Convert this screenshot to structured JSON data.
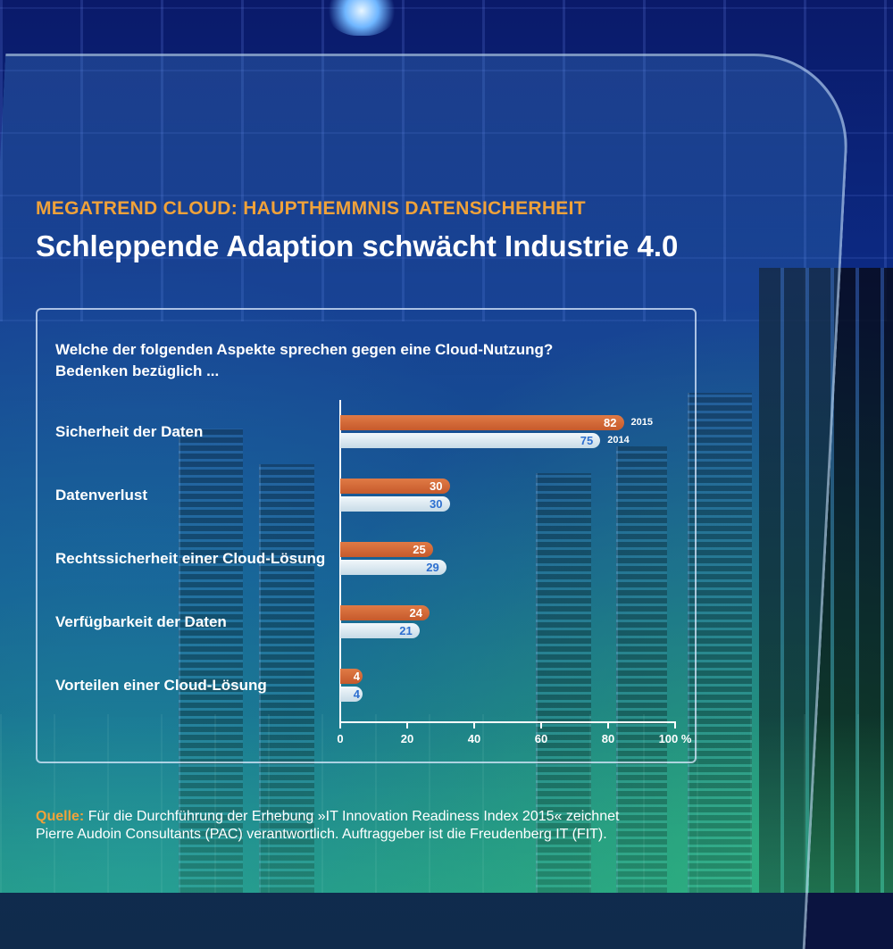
{
  "header": {
    "kicker": "MEGATREND CLOUD: HAUPTHEMMNIS DATENSICHERHEIT",
    "title": "Schleppende Adaption schwächt Industrie 4.0"
  },
  "question": {
    "line1": "Welche der folgenden Aspekte sprechen gegen eine Cloud-Nutzung?",
    "line2": "Bedenken bezüglich ..."
  },
  "source": {
    "label": "Quelle:",
    "text": "Für die Durchführung der Erhebung »IT Innovation Readiness Index 2015« zeichnet Pierre Audoin Consultants (PAC) verantwortlich. Auftraggeber ist die Freudenberg IT (FIT)."
  },
  "colors": {
    "series_2015": "#d0683a",
    "series_2014": "#dbe8f0",
    "kicker": "#f0a23a"
  },
  "chart_data": {
    "type": "bar",
    "orientation": "horizontal",
    "categories": [
      "Sicherheit der Daten",
      "Datenverlust",
      "Rechtssicherheit einer Cloud-Lösung",
      "Verfügbarkeit der Daten",
      "Vorteilen einer Cloud-Lösung"
    ],
    "series": [
      {
        "name": "2015",
        "values": [
          82,
          30,
          25,
          24,
          4
        ]
      },
      {
        "name": "2014",
        "values": [
          75,
          30,
          29,
          21,
          4
        ]
      }
    ],
    "xlim": [
      0,
      100
    ],
    "xticks": [
      "0",
      "20",
      "40",
      "60",
      "80",
      "100 %"
    ],
    "legend": "inline-first-category"
  }
}
